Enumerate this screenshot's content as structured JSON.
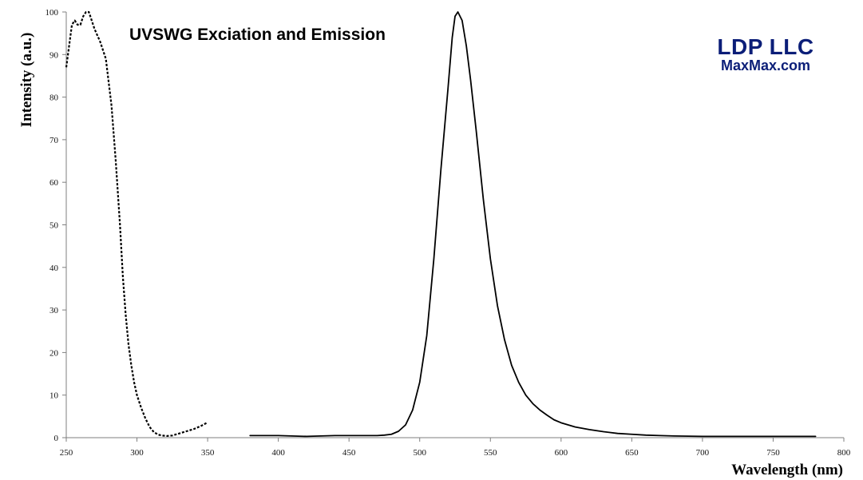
{
  "chart_data": {
    "type": "line",
    "title": "UVSWG Exciation and Emission",
    "xlabel": "Wavelength (nm)",
    "ylabel": "Intensity (a.u.)",
    "xlim": [
      250,
      800
    ],
    "ylim": [
      0,
      100
    ],
    "x_ticks": [
      250,
      300,
      350,
      400,
      450,
      500,
      550,
      600,
      650,
      700,
      750,
      800
    ],
    "y_ticks": [
      0,
      10,
      20,
      30,
      40,
      50,
      60,
      70,
      80,
      90,
      100
    ],
    "grid": false,
    "legend": "none",
    "series": [
      {
        "style": "dotted",
        "color": "#000000",
        "x": [
          250,
          252,
          254,
          256,
          258,
          260,
          262,
          264,
          266,
          268,
          270,
          274,
          278,
          282,
          285,
          288,
          290,
          292,
          294,
          296,
          298,
          300,
          303,
          306,
          309,
          312,
          315,
          318,
          321,
          325,
          330,
          335,
          340,
          345,
          350
        ],
        "y": [
          87,
          92,
          97,
          98,
          97,
          97,
          99,
          100,
          100,
          98,
          96,
          93,
          89,
          78,
          65,
          50,
          38,
          29,
          22,
          17,
          13,
          10,
          7,
          4.5,
          2.5,
          1.3,
          0.7,
          0.5,
          0.4,
          0.5,
          1.0,
          1.5,
          2.0,
          2.7,
          3.6
        ]
      },
      {
        "style": "solid",
        "color": "#000000",
        "x": [
          380,
          400,
          420,
          440,
          460,
          470,
          475,
          480,
          485,
          490,
          495,
          500,
          505,
          510,
          515,
          520,
          523,
          525,
          527,
          530,
          533,
          536,
          540,
          545,
          550,
          555,
          560,
          565,
          570,
          575,
          580,
          585,
          590,
          595,
          600,
          610,
          620,
          630,
          640,
          650,
          660,
          670,
          680,
          700,
          720,
          750,
          780
        ],
        "y": [
          0.5,
          0.5,
          0.3,
          0.5,
          0.5,
          0.5,
          0.6,
          0.8,
          1.5,
          3,
          6.5,
          13,
          24,
          42,
          63,
          82,
          94,
          99,
          100,
          98,
          92,
          84,
          72,
          56,
          42,
          31,
          23,
          17,
          13,
          10,
          8,
          6.5,
          5.3,
          4.2,
          3.5,
          2.5,
          1.9,
          1.4,
          1.0,
          0.8,
          0.6,
          0.5,
          0.4,
          0.3,
          0.3,
          0.3,
          0.3
        ]
      }
    ]
  },
  "branding": {
    "company": "LDP LLC",
    "website": "MaxMax.com",
    "color": "#0b1e78"
  }
}
